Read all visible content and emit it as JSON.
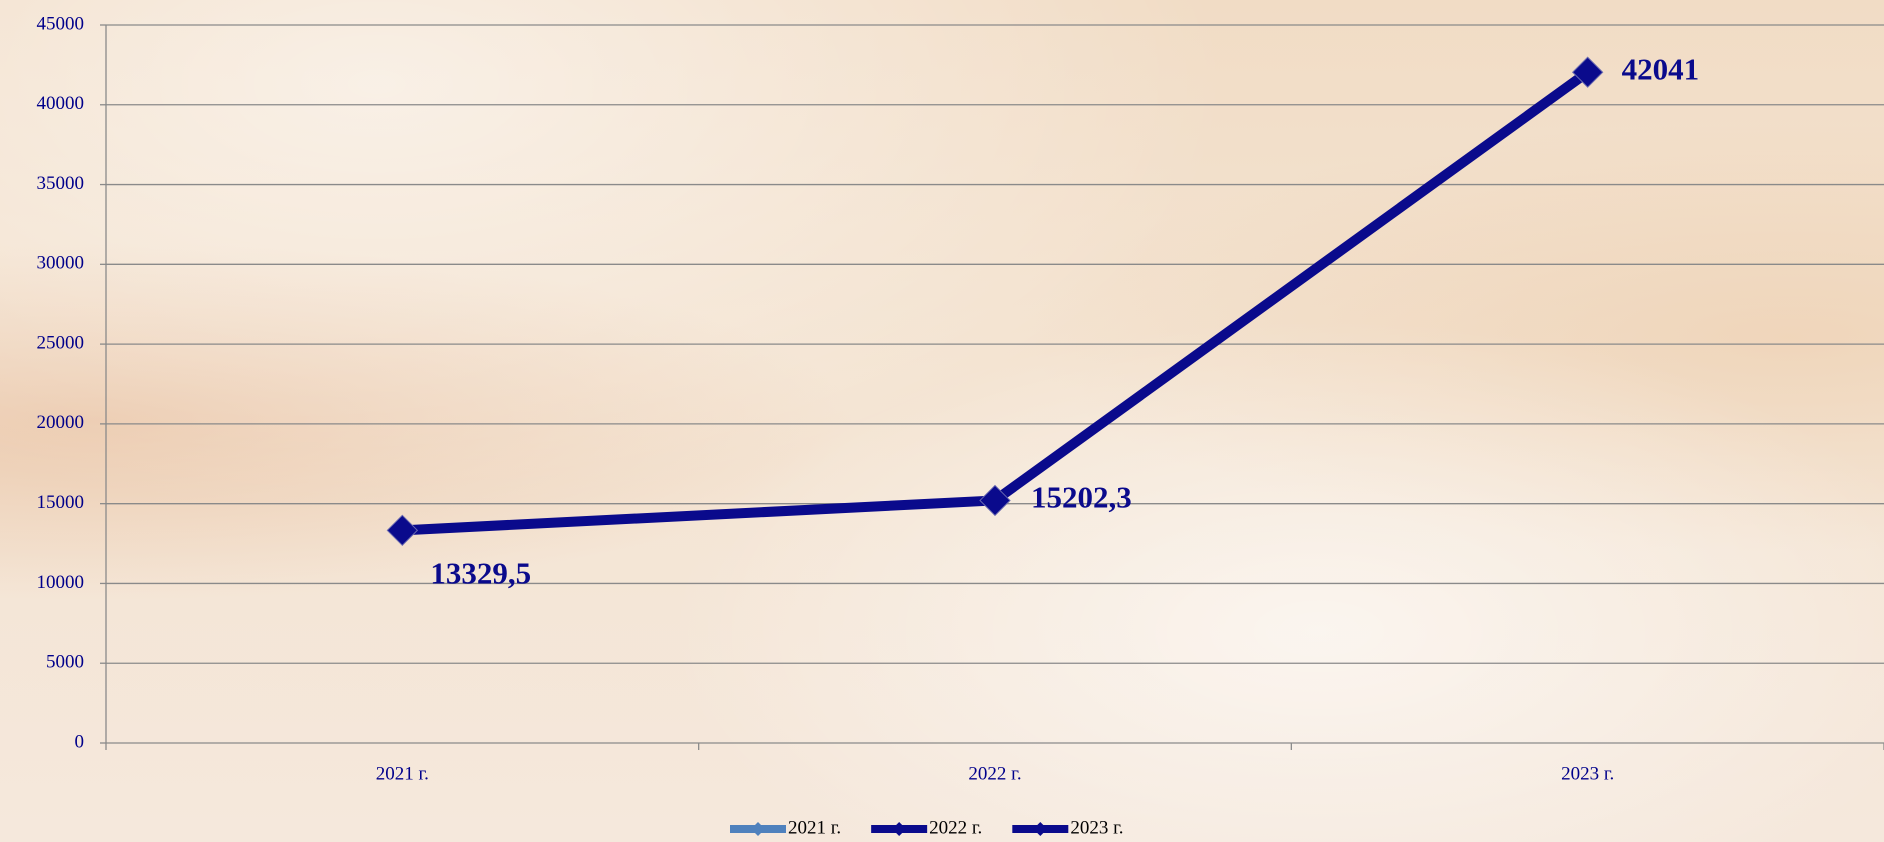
{
  "chart_data": {
    "type": "line",
    "categories": [
      "2021 г.",
      "2022 г.",
      "2023 г."
    ],
    "series": [
      {
        "color": "#0a0a8c",
        "values": [
          13329.5,
          15202.3,
          42041
        ],
        "value_labels": [
          "13329,5",
          "15202,3",
          "42041"
        ]
      }
    ],
    "legend": [
      {
        "name": "2021 г.",
        "color": "#4f81bd"
      },
      {
        "name": "2022 г.",
        "color": "#0a0a8c"
      },
      {
        "name": "2023 г.",
        "color": "#0a0a8c"
      }
    ],
    "ylim": [
      0,
      45000
    ],
    "yticks": [
      0,
      5000,
      10000,
      15000,
      20000,
      25000,
      30000,
      35000,
      40000,
      45000
    ],
    "grid": true
  }
}
